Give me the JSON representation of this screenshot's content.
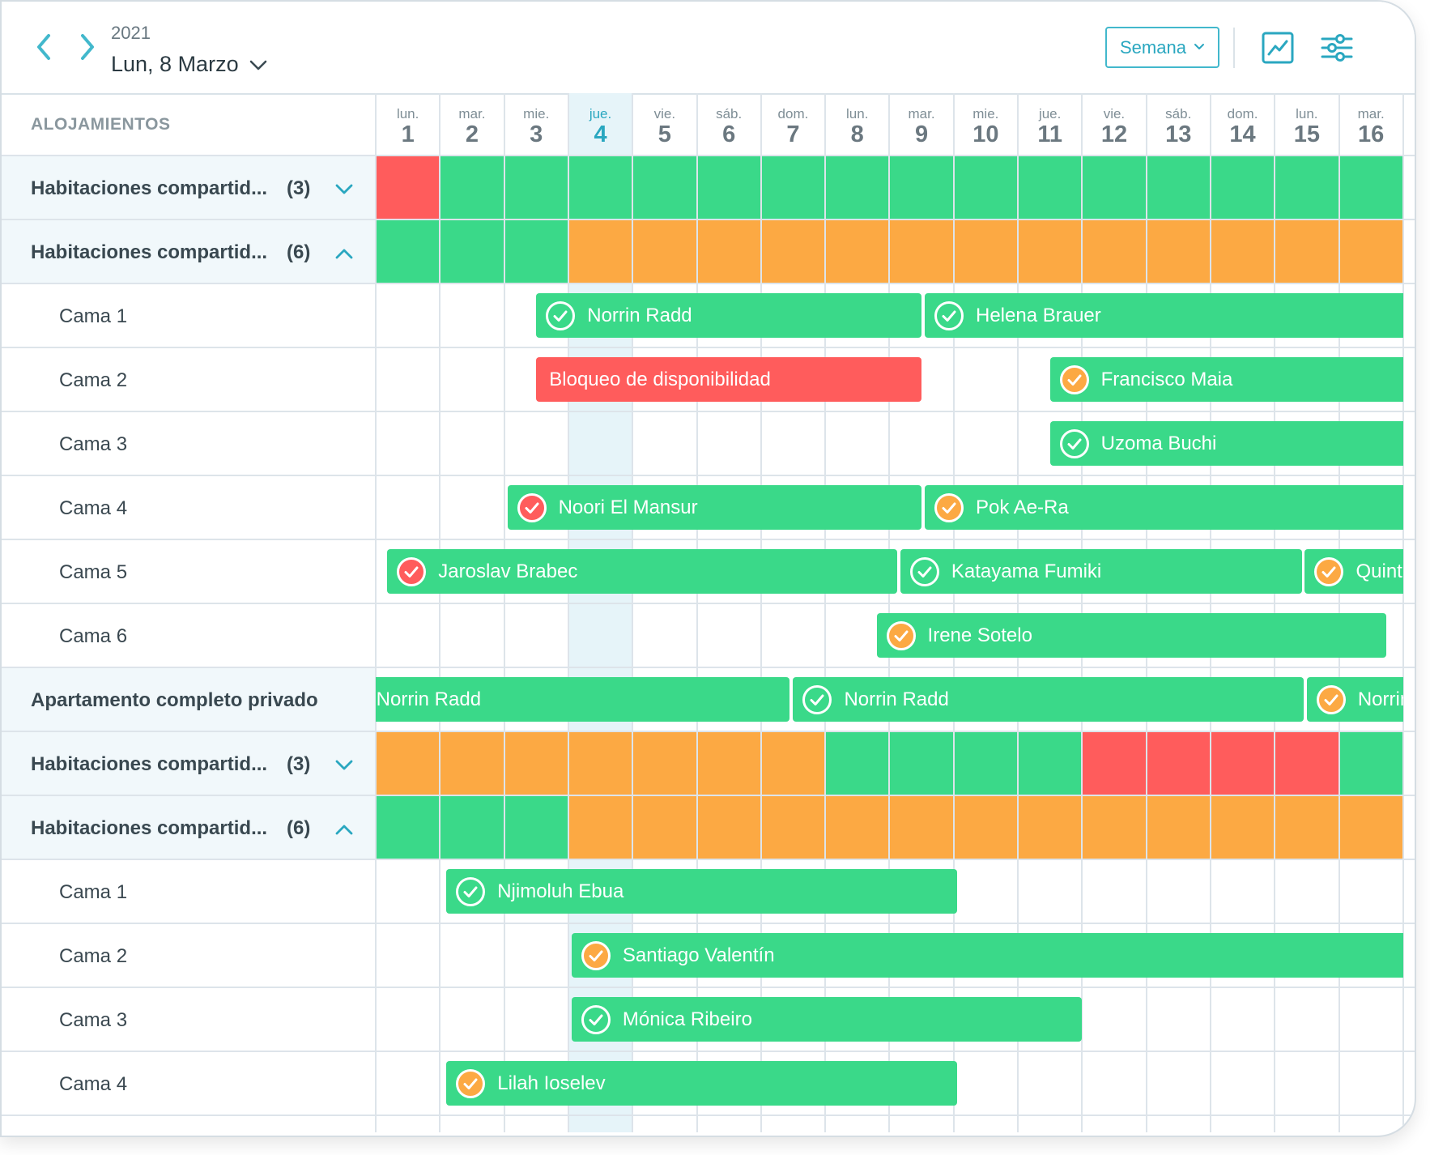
{
  "header": {
    "year": "2021",
    "date_label": "Lun, 8 Marzo",
    "view_select": {
      "selected": "Semana"
    }
  },
  "colors": {
    "available": "#3ad989",
    "partial": "#fca943",
    "full": "#ff5c5c",
    "accent": "#2aa7c0",
    "today_bg": "#e6f4f9"
  },
  "grid": {
    "column_header": "ALOJAMIENTOS",
    "days": [
      {
        "dow": "lun.",
        "day": "1"
      },
      {
        "dow": "mar.",
        "day": "2"
      },
      {
        "dow": "mie.",
        "day": "3"
      },
      {
        "dow": "jue.",
        "day": "4",
        "today": true
      },
      {
        "dow": "vie.",
        "day": "5"
      },
      {
        "dow": "sáb.",
        "day": "6"
      },
      {
        "dow": "dom.",
        "day": "7"
      },
      {
        "dow": "lun.",
        "day": "8"
      },
      {
        "dow": "mar.",
        "day": "9"
      },
      {
        "dow": "mie.",
        "day": "10"
      },
      {
        "dow": "jue.",
        "day": "11"
      },
      {
        "dow": "vie.",
        "day": "12"
      },
      {
        "dow": "sáb.",
        "day": "13"
      },
      {
        "dow": "dom.",
        "day": "14"
      },
      {
        "dow": "lun.",
        "day": "15"
      },
      {
        "dow": "mar.",
        "day": "16"
      }
    ],
    "rows": [
      {
        "type": "group",
        "label": "Habitaciones compartid...",
        "count": "(3)",
        "expanded": false,
        "availability": [
          "full",
          "available",
          "available",
          "available",
          "available",
          "available",
          "available",
          "available",
          "available",
          "available",
          "available",
          "available",
          "available",
          "available",
          "available",
          "available"
        ]
      },
      {
        "type": "group",
        "label": "Habitaciones compartid...",
        "count": "(6)",
        "expanded": true,
        "availability": [
          "available",
          "available",
          "available",
          "partial",
          "partial",
          "partial",
          "partial",
          "partial",
          "partial",
          "partial",
          "partial",
          "partial",
          "partial",
          "partial",
          "partial",
          "partial"
        ]
      },
      {
        "type": "bed",
        "label": "Cama 1",
        "bookings": [
          {
            "name": "Norrin Radd",
            "status": "confirmed",
            "start_day": 2.5,
            "end_day": 8.5
          },
          {
            "name": "Helena Brauer",
            "status": "confirmed",
            "start_day": 8.55,
            "end_day": 16
          }
        ]
      },
      {
        "type": "bed",
        "label": "Cama 2",
        "bookings": [
          {
            "name": "Bloqueo de disponibilidad",
            "status": "block",
            "start_day": 2.5,
            "end_day": 8.5
          },
          {
            "name": "Francisco Maia",
            "status": "pending",
            "start_day": 10.5,
            "end_day": 16
          }
        ]
      },
      {
        "type": "bed",
        "label": "Cama 3",
        "bookings": [
          {
            "name": "Uzoma Buchi",
            "status": "confirmed",
            "start_day": 10.5,
            "end_day": 16
          }
        ]
      },
      {
        "type": "bed",
        "label": "Cama 4",
        "bookings": [
          {
            "name": "Noori El Mansur",
            "status": "cancelled",
            "start_day": 2.05,
            "end_day": 8.5
          },
          {
            "name": "Pok Ae-Ra",
            "status": "pending",
            "start_day": 8.55,
            "end_day": 16
          }
        ]
      },
      {
        "type": "bed",
        "label": "Cama 5",
        "bookings": [
          {
            "name": "Jaroslav Brabec",
            "status": "cancelled",
            "start_day": 0.18,
            "end_day": 8.12
          },
          {
            "name": "Katayama Fumiki",
            "status": "confirmed",
            "start_day": 8.17,
            "end_day": 14.42
          },
          {
            "name": "Quint",
            "status": "pending",
            "start_day": 14.47,
            "end_day": 16
          }
        ]
      },
      {
        "type": "bed",
        "label": "Cama 6",
        "bookings": [
          {
            "name": "Irene Sotelo",
            "status": "pending",
            "start_day": 7.8,
            "end_day": 15.74
          }
        ]
      },
      {
        "type": "group",
        "label": "Apartamento completo privado",
        "count": "",
        "expanded": null,
        "bookings": [
          {
            "name": "Norrin Radd",
            "status": "confirmed",
            "start_day": -0.95,
            "end_day": 6.45,
            "hide_icon": true
          },
          {
            "name": "Norrin Radd",
            "status": "confirmed",
            "start_day": 6.5,
            "end_day": 14.45
          },
          {
            "name": "Norrin Radd",
            "status": "pending",
            "start_day": 14.5,
            "end_day": 16
          }
        ]
      },
      {
        "type": "group",
        "label": "Habitaciones compartid...",
        "count": "(3)",
        "expanded": false,
        "availability": [
          "partial",
          "partial",
          "partial",
          "partial",
          "partial",
          "partial",
          "partial",
          "available",
          "available",
          "available",
          "available",
          "full",
          "full",
          "full",
          "full",
          "available"
        ]
      },
      {
        "type": "group",
        "label": "Habitaciones compartid...",
        "count": "(6)",
        "expanded": true,
        "availability": [
          "available",
          "available",
          "available",
          "partial",
          "partial",
          "partial",
          "partial",
          "partial",
          "partial",
          "partial",
          "partial",
          "partial",
          "partial",
          "partial",
          "partial",
          "partial"
        ]
      },
      {
        "type": "bed",
        "label": "Cama 1",
        "bookings": [
          {
            "name": "Njimoluh Ebua",
            "status": "confirmed",
            "start_day": 1.1,
            "end_day": 9.05
          }
        ]
      },
      {
        "type": "bed",
        "label": "Cama 2",
        "bookings": [
          {
            "name": "Santiago Valentín",
            "status": "pending",
            "start_day": 3.05,
            "end_day": 16
          }
        ]
      },
      {
        "type": "bed",
        "label": "Cama 3",
        "bookings": [
          {
            "name": "Mónica Ribeiro",
            "status": "confirmed",
            "start_day": 3.05,
            "end_day": 11.0
          }
        ]
      },
      {
        "type": "bed",
        "label": "Cama 4",
        "bookings": [
          {
            "name": "Lilah Ioselev",
            "status": "pending",
            "start_day": 1.1,
            "end_day": 9.05
          }
        ]
      }
    ]
  }
}
